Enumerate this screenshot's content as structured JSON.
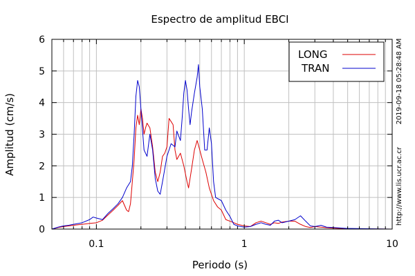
{
  "chart_data": {
    "type": "line",
    "title": "Espectro de amplitud EBCI",
    "xlabel": "Periodo (s)",
    "ylabel": "Amplitud (cm/s)",
    "xscale": "log",
    "xlim": [
      0.05,
      10
    ],
    "ylim": [
      0,
      6
    ],
    "grid": true,
    "legend_position": "top-right",
    "x_ticks": [
      {
        "value": 0.1,
        "label": "0.1"
      },
      {
        "value": 1,
        "label": "1"
      },
      {
        "value": 10,
        "label": "10"
      }
    ],
    "y_ticks": [
      {
        "value": 0,
        "label": "0"
      },
      {
        "value": 1,
        "label": "1"
      },
      {
        "value": 2,
        "label": "2"
      },
      {
        "value": 3,
        "label": "3"
      },
      {
        "value": 4,
        "label": "4"
      },
      {
        "value": 5,
        "label": "5"
      },
      {
        "value": 6,
        "label": "6"
      }
    ],
    "series": [
      {
        "name": "LONG",
        "color": "#dd0000",
        "points": [
          [
            0.05,
            0.0
          ],
          [
            0.055,
            0.05
          ],
          [
            0.06,
            0.08
          ],
          [
            0.065,
            0.1
          ],
          [
            0.07,
            0.12
          ],
          [
            0.08,
            0.15
          ],
          [
            0.09,
            0.18
          ],
          [
            0.1,
            0.2
          ],
          [
            0.11,
            0.28
          ],
          [
            0.12,
            0.45
          ],
          [
            0.13,
            0.6
          ],
          [
            0.14,
            0.75
          ],
          [
            0.15,
            0.9
          ],
          [
            0.16,
            0.6
          ],
          [
            0.165,
            0.55
          ],
          [
            0.17,
            0.8
          ],
          [
            0.175,
            1.5
          ],
          [
            0.18,
            2.2
          ],
          [
            0.185,
            3.2
          ],
          [
            0.19,
            3.6
          ],
          [
            0.195,
            3.3
          ],
          [
            0.2,
            3.8
          ],
          [
            0.205,
            3.5
          ],
          [
            0.21,
            3.0
          ],
          [
            0.215,
            3.2
          ],
          [
            0.22,
            3.35
          ],
          [
            0.23,
            3.2
          ],
          [
            0.24,
            2.6
          ],
          [
            0.25,
            1.8
          ],
          [
            0.26,
            1.5
          ],
          [
            0.27,
            1.8
          ],
          [
            0.28,
            2.3
          ],
          [
            0.29,
            2.4
          ],
          [
            0.3,
            2.6
          ],
          [
            0.31,
            3.5
          ],
          [
            0.32,
            3.4
          ],
          [
            0.33,
            3.3
          ],
          [
            0.34,
            2.5
          ],
          [
            0.35,
            2.2
          ],
          [
            0.37,
            2.4
          ],
          [
            0.39,
            2.0
          ],
          [
            0.41,
            1.5
          ],
          [
            0.42,
            1.3
          ],
          [
            0.44,
            1.9
          ],
          [
            0.46,
            2.5
          ],
          [
            0.48,
            2.8
          ],
          [
            0.5,
            2.5
          ],
          [
            0.52,
            2.2
          ],
          [
            0.55,
            1.8
          ],
          [
            0.58,
            1.3
          ],
          [
            0.62,
            0.9
          ],
          [
            0.66,
            0.7
          ],
          [
            0.7,
            0.6
          ],
          [
            0.75,
            0.3
          ],
          [
            0.8,
            0.25
          ],
          [
            0.85,
            0.2
          ],
          [
            0.9,
            0.15
          ],
          [
            1.0,
            0.1
          ],
          [
            1.1,
            0.08
          ],
          [
            1.2,
            0.2
          ],
          [
            1.3,
            0.25
          ],
          [
            1.4,
            0.2
          ],
          [
            1.5,
            0.15
          ],
          [
            1.6,
            0.2
          ],
          [
            1.7,
            0.18
          ],
          [
            1.8,
            0.22
          ],
          [
            2.0,
            0.25
          ],
          [
            2.2,
            0.25
          ],
          [
            2.4,
            0.15
          ],
          [
            2.6,
            0.08
          ],
          [
            2.8,
            0.05
          ],
          [
            3.0,
            0.08
          ],
          [
            3.5,
            0.05
          ],
          [
            4.0,
            0.03
          ],
          [
            5.0,
            0.01
          ],
          [
            7.0,
            0.005
          ],
          [
            10.0,
            0.0
          ]
        ]
      },
      {
        "name": "TRAN",
        "color": "#0000cc",
        "points": [
          [
            0.05,
            0.0
          ],
          [
            0.055,
            0.06
          ],
          [
            0.06,
            0.1
          ],
          [
            0.065,
            0.12
          ],
          [
            0.07,
            0.15
          ],
          [
            0.08,
            0.2
          ],
          [
            0.09,
            0.3
          ],
          [
            0.095,
            0.38
          ],
          [
            0.1,
            0.35
          ],
          [
            0.11,
            0.3
          ],
          [
            0.12,
            0.5
          ],
          [
            0.13,
            0.65
          ],
          [
            0.14,
            0.8
          ],
          [
            0.15,
            1.0
          ],
          [
            0.16,
            1.3
          ],
          [
            0.17,
            1.5
          ],
          [
            0.175,
            2.0
          ],
          [
            0.18,
            3.0
          ],
          [
            0.185,
            4.2
          ],
          [
            0.19,
            4.7
          ],
          [
            0.195,
            4.5
          ],
          [
            0.2,
            3.8
          ],
          [
            0.21,
            2.5
          ],
          [
            0.22,
            2.3
          ],
          [
            0.23,
            3.0
          ],
          [
            0.24,
            2.5
          ],
          [
            0.25,
            1.6
          ],
          [
            0.26,
            1.2
          ],
          [
            0.27,
            1.1
          ],
          [
            0.28,
            1.5
          ],
          [
            0.3,
            2.3
          ],
          [
            0.32,
            2.7
          ],
          [
            0.34,
            2.6
          ],
          [
            0.35,
            3.1
          ],
          [
            0.37,
            2.8
          ],
          [
            0.38,
            3.5
          ],
          [
            0.39,
            4.3
          ],
          [
            0.4,
            4.7
          ],
          [
            0.41,
            4.4
          ],
          [
            0.42,
            3.8
          ],
          [
            0.43,
            3.3
          ],
          [
            0.44,
            3.7
          ],
          [
            0.46,
            4.3
          ],
          [
            0.48,
            4.8
          ],
          [
            0.49,
            5.2
          ],
          [
            0.5,
            4.5
          ],
          [
            0.52,
            3.8
          ],
          [
            0.54,
            2.5
          ],
          [
            0.56,
            2.5
          ],
          [
            0.58,
            3.2
          ],
          [
            0.6,
            2.7
          ],
          [
            0.62,
            1.5
          ],
          [
            0.64,
            1.0
          ],
          [
            0.7,
            0.9
          ],
          [
            0.75,
            0.6
          ],
          [
            0.8,
            0.4
          ],
          [
            0.85,
            0.15
          ],
          [
            0.9,
            0.1
          ],
          [
            1.0,
            0.06
          ],
          [
            1.1,
            0.08
          ],
          [
            1.2,
            0.15
          ],
          [
            1.3,
            0.2
          ],
          [
            1.4,
            0.15
          ],
          [
            1.5,
            0.12
          ],
          [
            1.6,
            0.25
          ],
          [
            1.7,
            0.28
          ],
          [
            1.8,
            0.2
          ],
          [
            2.0,
            0.25
          ],
          [
            2.2,
            0.3
          ],
          [
            2.4,
            0.42
          ],
          [
            2.6,
            0.25
          ],
          [
            2.8,
            0.1
          ],
          [
            3.0,
            0.08
          ],
          [
            3.3,
            0.12
          ],
          [
            3.6,
            0.06
          ],
          [
            4.0,
            0.05
          ],
          [
            5.0,
            0.02
          ],
          [
            7.0,
            0.01
          ],
          [
            10.0,
            0.0
          ]
        ]
      }
    ]
  },
  "side_labels": {
    "timestamp": "2019-09-18 05:28:48 AM",
    "url": "http://www.lis.ucr.ac.cr"
  }
}
